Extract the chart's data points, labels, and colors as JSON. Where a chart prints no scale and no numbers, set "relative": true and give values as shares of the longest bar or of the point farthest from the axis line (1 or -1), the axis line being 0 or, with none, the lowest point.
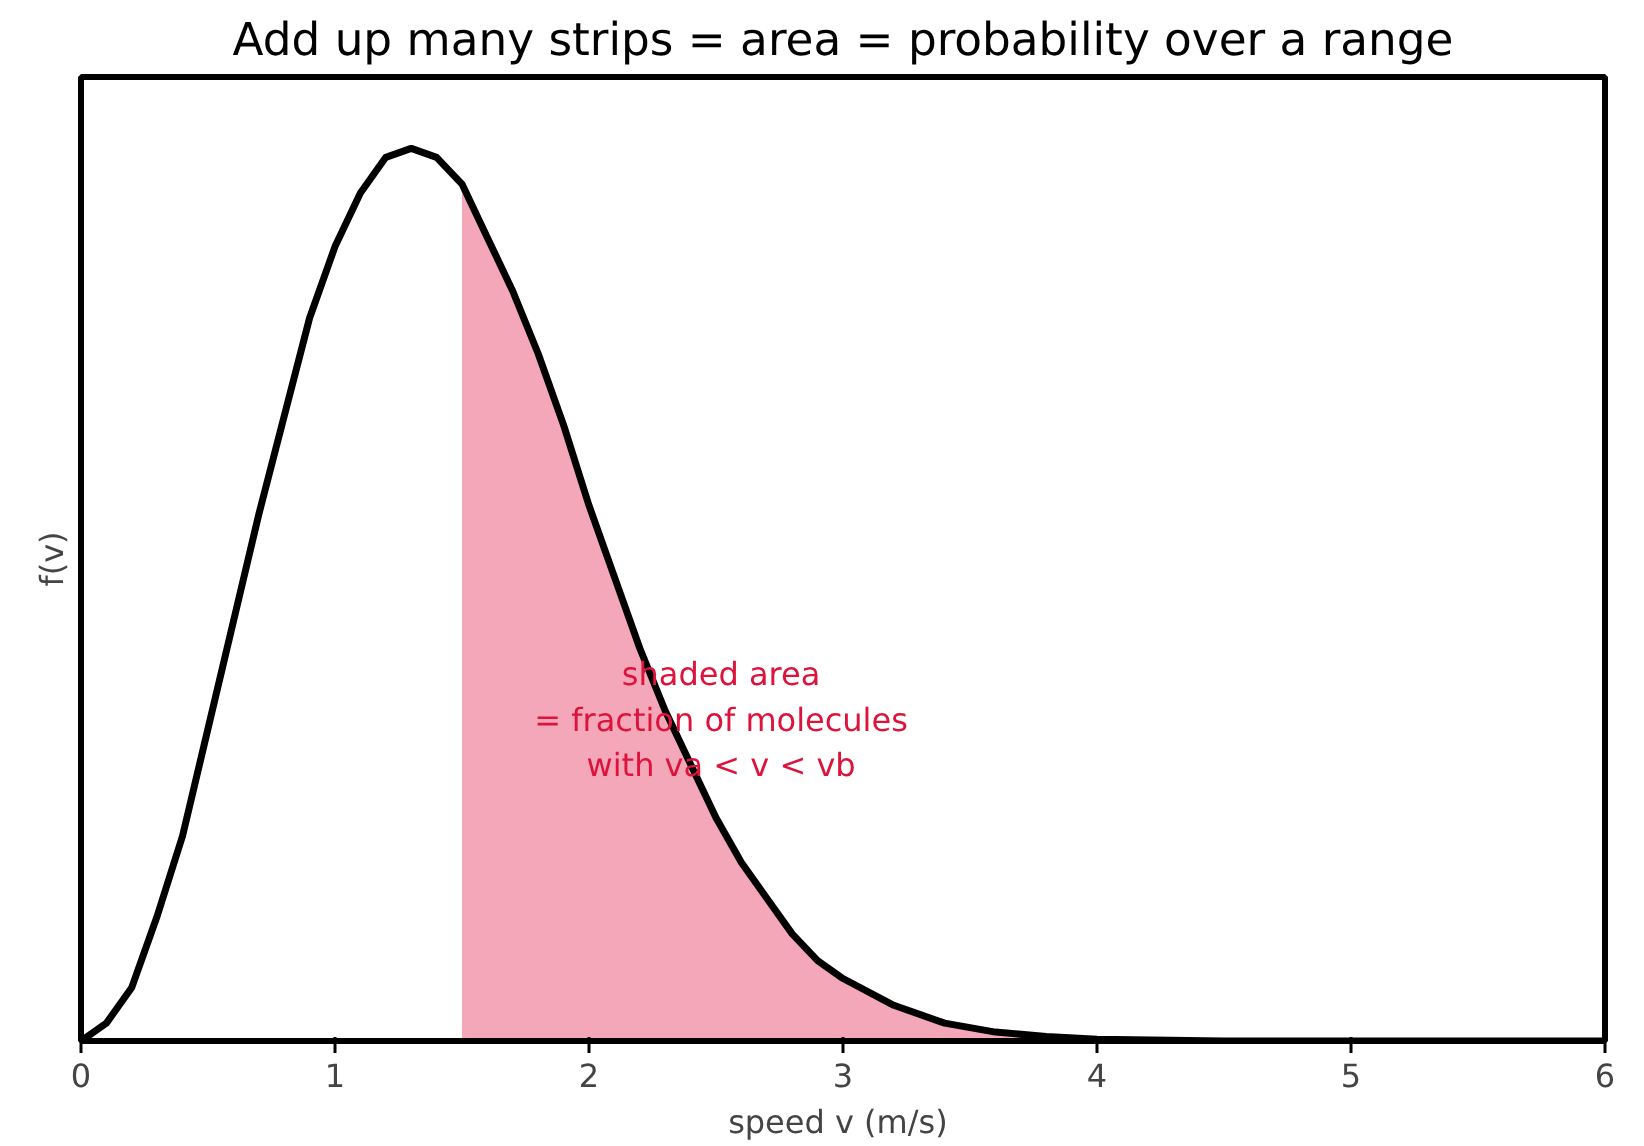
{
  "chart_data": {
    "type": "line",
    "title": "Add up many strips = area = probability over a range",
    "xlabel": "speed v  (m/s)",
    "ylabel": "f(v)",
    "relative": true,
    "xlim": [
      0,
      6
    ],
    "xticks": [
      0,
      1,
      2,
      3,
      4,
      5,
      6
    ],
    "tick_labels": "x",
    "grid": false,
    "annotations": [
      "shaded area\n= fraction of molecules\nwith va < v < vb"
    ],
    "series": [
      {
        "type": "area",
        "color": "#f4a7b8",
        "x": [
          1.5,
          1.6,
          1.7,
          1.8,
          1.9,
          2.0,
          2.1,
          2.2,
          2.3,
          2.4,
          2.5,
          2.6,
          2.7,
          2.8,
          2.9,
          3.0,
          3.2,
          3.4,
          3.6,
          3.8,
          4.0,
          4.5,
          5.0,
          6.0
        ],
        "values": [
          0.96,
          0.9,
          0.84,
          0.77,
          0.69,
          0.6,
          0.52,
          0.44,
          0.37,
          0.31,
          0.25,
          0.2,
          0.16,
          0.12,
          0.09,
          0.07,
          0.04,
          0.02,
          0.01,
          0.005,
          0.002,
          0,
          0,
          0
        ]
      },
      {
        "color": "#000000",
        "x": [
          0,
          0.1,
          0.2,
          0.3,
          0.4,
          0.5,
          0.6,
          0.7,
          0.8,
          0.9,
          1.0,
          1.1,
          1.2,
          1.3,
          1.4,
          1.5,
          1.6,
          1.7,
          1.8,
          1.9,
          2.0,
          2.1,
          2.2,
          2.3,
          2.4,
          2.5,
          2.6,
          2.7,
          2.8,
          2.9,
          3.0,
          3.2,
          3.4,
          3.6,
          3.8,
          4.0,
          4.5,
          5.0,
          6.0
        ],
        "values": [
          0,
          0.02,
          0.06,
          0.14,
          0.23,
          0.35,
          0.47,
          0.59,
          0.7,
          0.81,
          0.89,
          0.95,
          0.99,
          1,
          0.99,
          0.96,
          0.9,
          0.84,
          0.77,
          0.69,
          0.6,
          0.52,
          0.44,
          0.37,
          0.31,
          0.25,
          0.2,
          0.16,
          0.12,
          0.09,
          0.07,
          0.04,
          0.02,
          0.01,
          0.005,
          0.002,
          0,
          0,
          0
        ]
      }
    ]
  }
}
